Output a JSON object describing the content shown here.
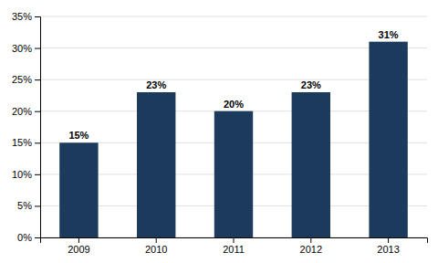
{
  "chart_data": {
    "type": "bar",
    "categories": [
      "2009",
      "2010",
      "2011",
      "2012",
      "2013"
    ],
    "values": [
      0.15,
      0.23,
      0.2,
      0.23,
      0.31
    ],
    "value_labels": [
      "15%",
      "23%",
      "20%",
      "23%",
      "31%"
    ],
    "data_labels": true,
    "color": "#1b3a5c",
    "ylim": [
      0,
      0.35
    ],
    "yticks": [
      {
        "value": 0.0,
        "label": "0%"
      },
      {
        "value": 0.05,
        "label": "5%"
      },
      {
        "value": 0.1,
        "label": "10%"
      },
      {
        "value": 0.15,
        "label": "15%"
      },
      {
        "value": 0.2,
        "label": "20%"
      },
      {
        "value": 0.25,
        "label": "25%"
      },
      {
        "value": 0.3,
        "label": "30%"
      },
      {
        "value": 0.35,
        "label": "35%"
      }
    ],
    "grid": true
  }
}
